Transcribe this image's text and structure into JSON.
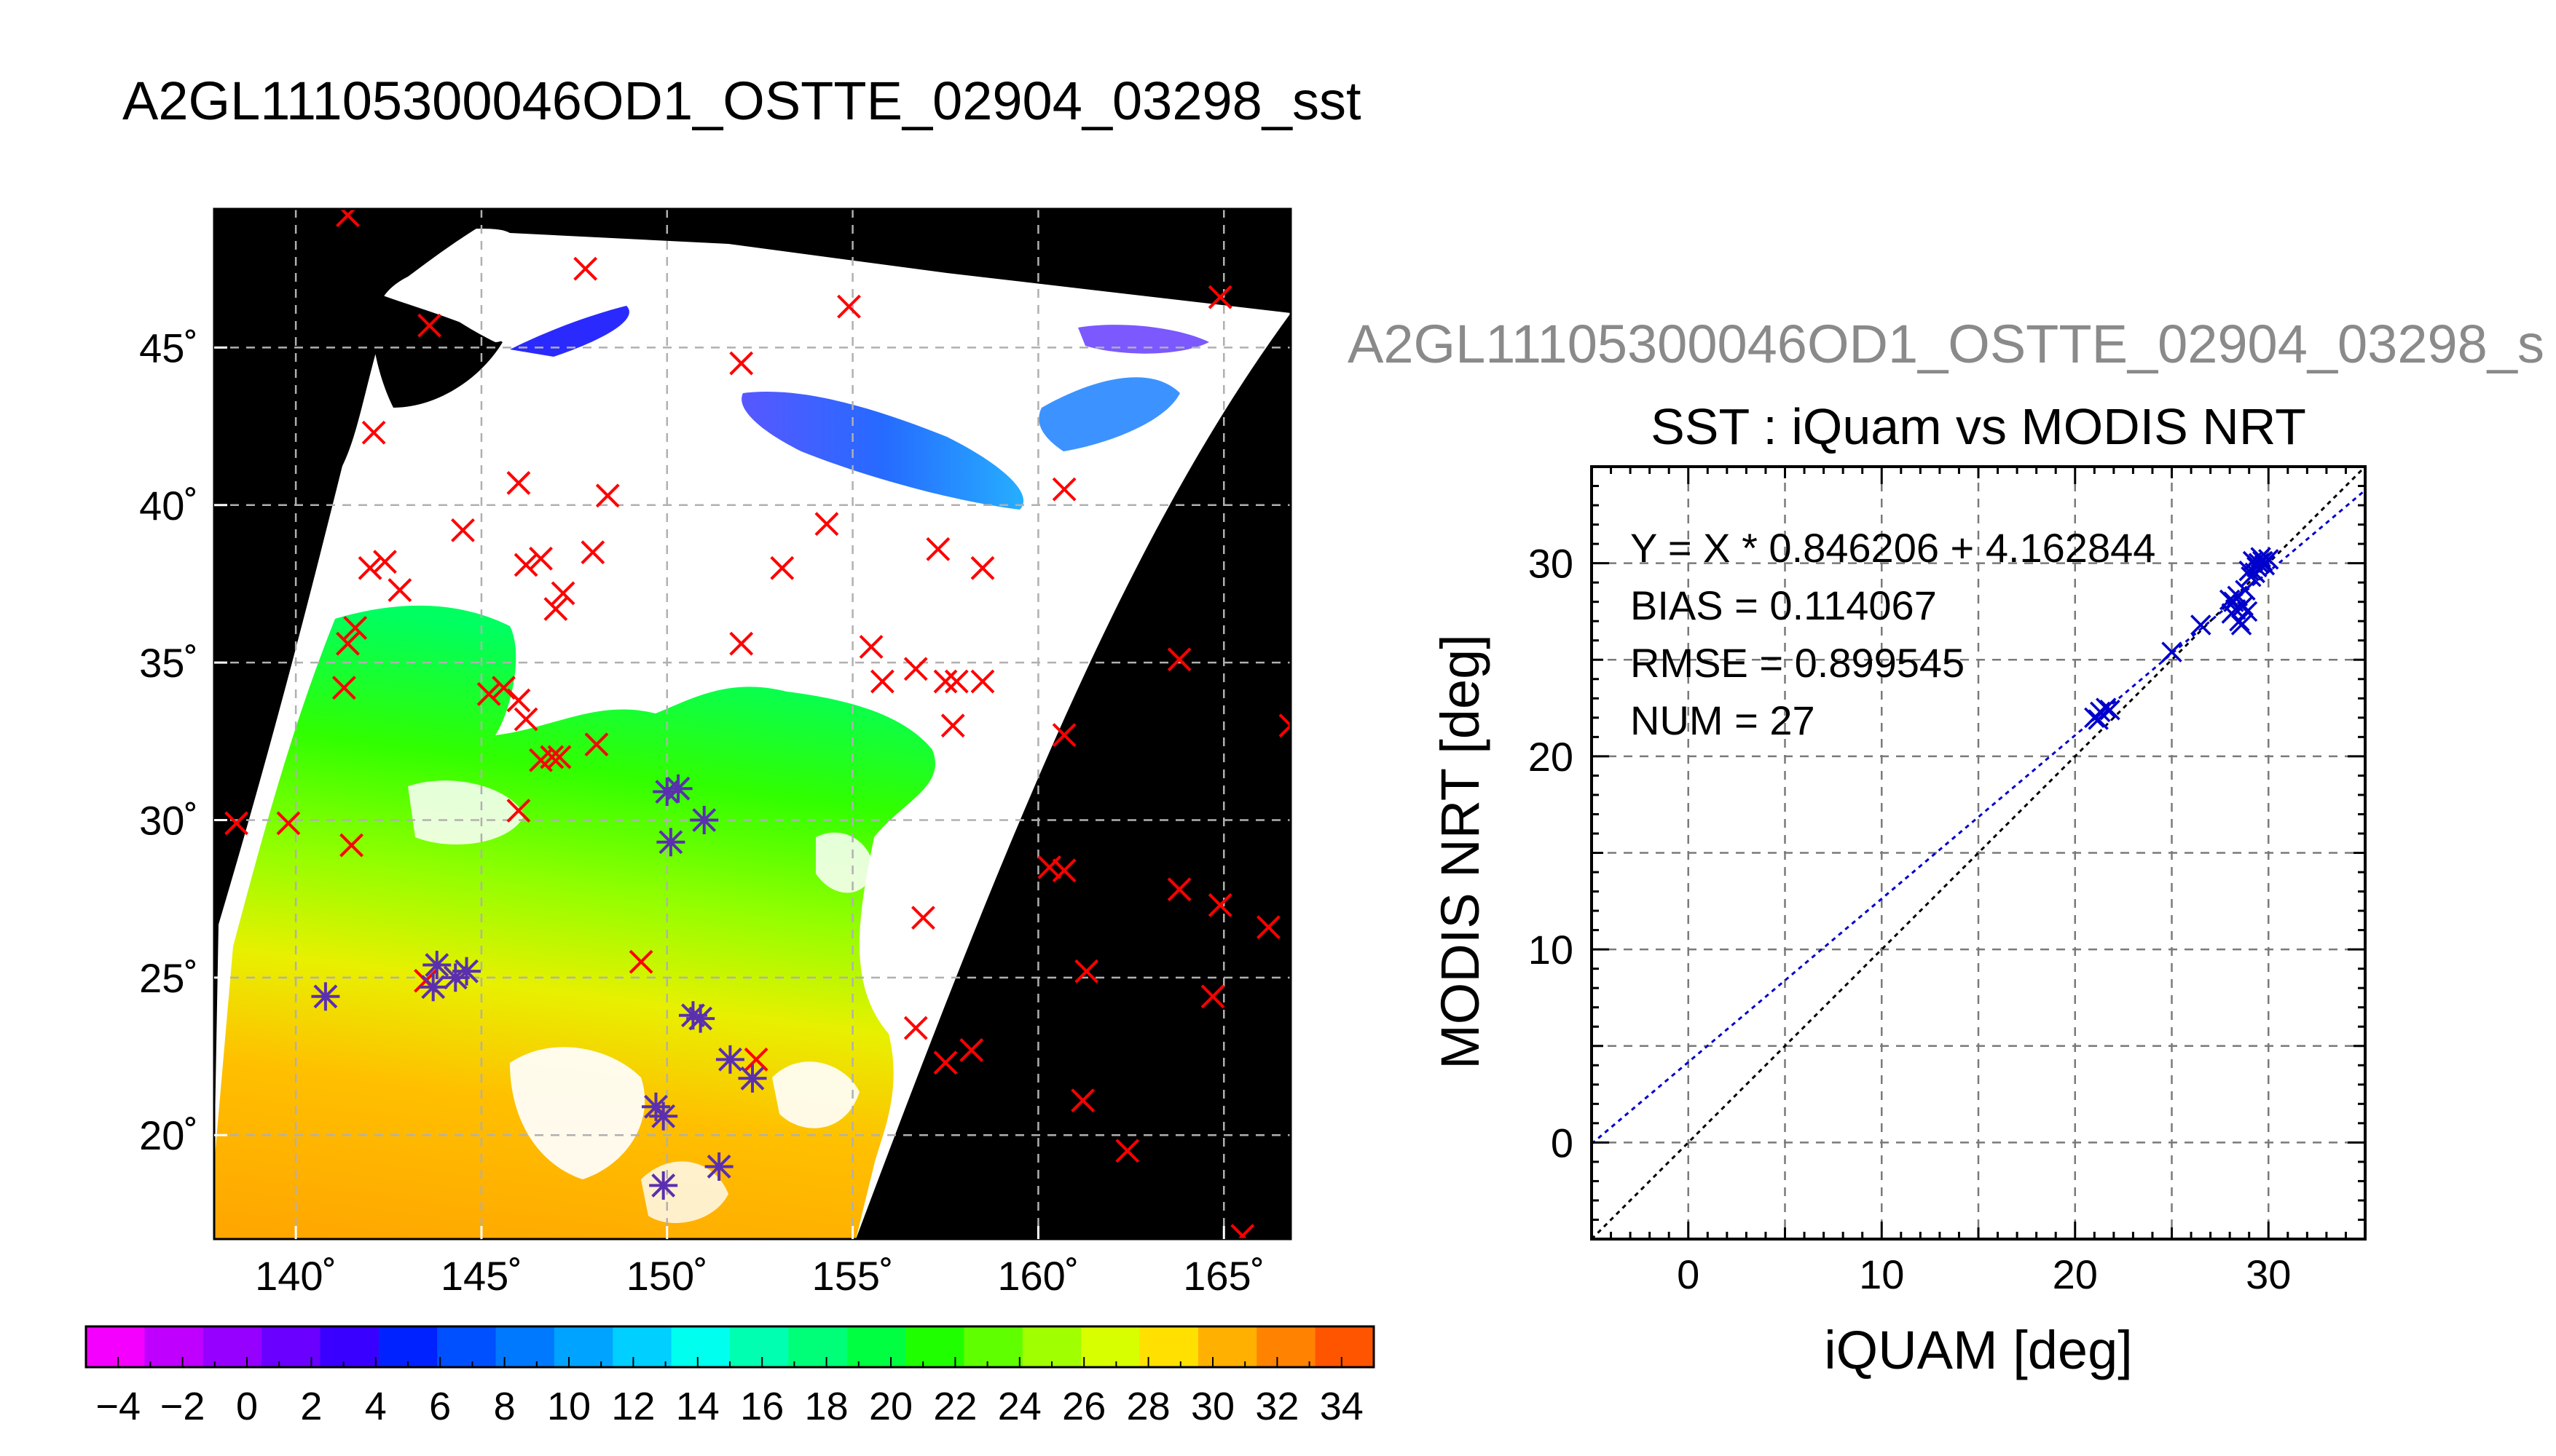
{
  "figure": {
    "title": "A2GL11105300046OD1_OSTTE_02904_03298_sst",
    "right_subtitle": "A2GL11105300046OD1_OSTTE_02904_03298_s"
  },
  "map": {
    "lon_ticks": [
      "140˚",
      "145˚",
      "150˚",
      "155˚",
      "160˚",
      "165˚"
    ],
    "lat_ticks": [
      "45˚",
      "40˚",
      "35˚",
      "30˚",
      "25˚",
      "20˚"
    ],
    "lon_range": [
      137.8,
      166.8
    ],
    "lat_range": [
      16.7,
      49.4
    ],
    "background_color": "#000000",
    "cloud_color": "#ffffff",
    "grid": "dashed",
    "in_situ_marker_color": "#ff0000",
    "matched_marker_color": "#5a2fb0"
  },
  "colorbar": {
    "tick_labels": [
      "−4",
      "−2",
      "0",
      "2",
      "4",
      "6",
      "8",
      "10",
      "12",
      "14",
      "16",
      "18",
      "20",
      "22",
      "24",
      "26",
      "28",
      "30",
      "32",
      "34"
    ],
    "range": [
      -5,
      35
    ],
    "colors": [
      "#f400ff",
      "#c000ff",
      "#9500ff",
      "#6a00ff",
      "#3a00ff",
      "#0022ff",
      "#0050ff",
      "#0079ff",
      "#00a3ff",
      "#00cfff",
      "#00ffee",
      "#00ffb0",
      "#00ff78",
      "#00ff40",
      "#20ff00",
      "#60ff00",
      "#a0ff00",
      "#d8ff00",
      "#ffe000",
      "#ffb000",
      "#ff8200",
      "#ff5400"
    ]
  },
  "chart_data": [
    {
      "type": "scatter",
      "title": "SST : iQuam vs MODIS NRT",
      "xlabel": "iQUAM [deg]",
      "ylabel": "MODIS NRT [deg]",
      "xlim": [
        -5,
        35
      ],
      "ylim": [
        -5,
        35
      ],
      "xticks": [
        "0",
        "10",
        "20",
        "30"
      ],
      "yticks": [
        "0",
        "10",
        "20",
        "30"
      ],
      "grid": true,
      "stats": {
        "fit": "Y = X * 0.846206 + 4.162844",
        "bias": "BIAS = 0.114067",
        "rmse": "RMSE = 0.899545",
        "num": "NUM = 27"
      },
      "fit_line": {
        "slope": 0.846206,
        "intercept": 4.162844,
        "color": "#0000cc"
      },
      "identity_line": {
        "slope": 1,
        "intercept": 0,
        "color": "#000000"
      },
      "marker_color": "#0000cc",
      "points": [
        [
          21.0,
          22.0
        ],
        [
          21.3,
          22.3
        ],
        [
          21.6,
          22.5
        ],
        [
          21.2,
          21.9
        ],
        [
          21.8,
          22.4
        ],
        [
          25.0,
          25.4
        ],
        [
          26.5,
          26.8
        ],
        [
          28.0,
          28.1
        ],
        [
          28.3,
          27.6
        ],
        [
          28.5,
          27.0
        ],
        [
          28.1,
          27.4
        ],
        [
          28.7,
          27.8
        ],
        [
          28.2,
          28.0
        ],
        [
          28.4,
          28.3
        ],
        [
          28.9,
          27.5
        ],
        [
          28.6,
          26.8
        ],
        [
          29.0,
          29.6
        ],
        [
          29.2,
          30.1
        ],
        [
          29.4,
          29.8
        ],
        [
          29.6,
          30.3
        ],
        [
          29.8,
          29.9
        ],
        [
          30.0,
          30.2
        ],
        [
          29.1,
          29.3
        ],
        [
          29.5,
          30.0
        ],
        [
          29.3,
          29.5
        ],
        [
          29.7,
          30.1
        ],
        [
          28.8,
          28.6
        ]
      ]
    }
  ],
  "map_markers": {
    "in_situ": [
      [
        141.4,
        49.2
      ],
      [
        147.8,
        47.5
      ],
      [
        143.6,
        45.7
      ],
      [
        154.9,
        46.3
      ],
      [
        164.9,
        46.6
      ],
      [
        152.0,
        44.5
      ],
      [
        142.1,
        42.3
      ],
      [
        146.0,
        40.7
      ],
      [
        148.4,
        40.3
      ],
      [
        160.7,
        40.5
      ],
      [
        144.5,
        39.2
      ],
      [
        154.3,
        39.4
      ],
      [
        148.0,
        38.5
      ],
      [
        146.6,
        38.3
      ],
      [
        146.2,
        38.1
      ],
      [
        142.0,
        38.0
      ],
      [
        142.4,
        38.2
      ],
      [
        142.8,
        37.3
      ],
      [
        153.1,
        38.0
      ],
      [
        157.3,
        38.6
      ],
      [
        158.5,
        38.0
      ],
      [
        147.2,
        37.2
      ],
      [
        147.0,
        36.7
      ],
      [
        141.6,
        36.1
      ],
      [
        141.4,
        35.6
      ],
      [
        152.0,
        35.6
      ],
      [
        155.5,
        35.5
      ],
      [
        163.8,
        35.1
      ],
      [
        156.7,
        34.8
      ],
      [
        157.5,
        34.4
      ],
      [
        157.8,
        34.4
      ],
      [
        158.5,
        34.4
      ],
      [
        155.8,
        34.4
      ],
      [
        141.3,
        34.2
      ],
      [
        145.2,
        34.0
      ],
      [
        145.6,
        34.2
      ],
      [
        146.0,
        33.8
      ],
      [
        146.2,
        33.2
      ],
      [
        157.7,
        33.0
      ],
      [
        160.7,
        32.7
      ],
      [
        148.1,
        32.4
      ],
      [
        146.6,
        31.9
      ],
      [
        146.9,
        32.0
      ],
      [
        147.1,
        32.0
      ],
      [
        146.0,
        30.3
      ],
      [
        138.4,
        29.9
      ],
      [
        139.8,
        29.9
      ],
      [
        141.5,
        29.2
      ],
      [
        166.8,
        33.0
      ],
      [
        160.3,
        28.5
      ],
      [
        160.7,
        28.4
      ],
      [
        163.8,
        27.8
      ],
      [
        164.9,
        27.3
      ],
      [
        166.2,
        26.6
      ],
      [
        156.9,
        26.9
      ],
      [
        149.3,
        25.5
      ],
      [
        161.3,
        25.2
      ],
      [
        143.5,
        24.9
      ],
      [
        164.7,
        24.4
      ],
      [
        156.7,
        23.4
      ],
      [
        157.5,
        22.3
      ],
      [
        158.2,
        22.7
      ],
      [
        152.4,
        22.4
      ],
      [
        161.2,
        21.1
      ],
      [
        162.4,
        19.5
      ],
      [
        165.5,
        16.8
      ]
    ],
    "matched": [
      [
        150.0,
        30.9
      ],
      [
        150.3,
        31.0
      ],
      [
        151.0,
        30.0
      ],
      [
        150.1,
        29.3
      ],
      [
        140.8,
        24.4
      ],
      [
        143.8,
        25.4
      ],
      [
        144.3,
        25.0
      ],
      [
        143.7,
        24.7
      ],
      [
        144.6,
        25.2
      ],
      [
        150.7,
        23.8
      ],
      [
        150.9,
        23.7
      ],
      [
        151.7,
        22.4
      ],
      [
        152.3,
        21.8
      ],
      [
        149.7,
        20.9
      ],
      [
        149.9,
        20.6
      ],
      [
        151.4,
        19.0
      ],
      [
        149.9,
        18.4
      ]
    ]
  }
}
